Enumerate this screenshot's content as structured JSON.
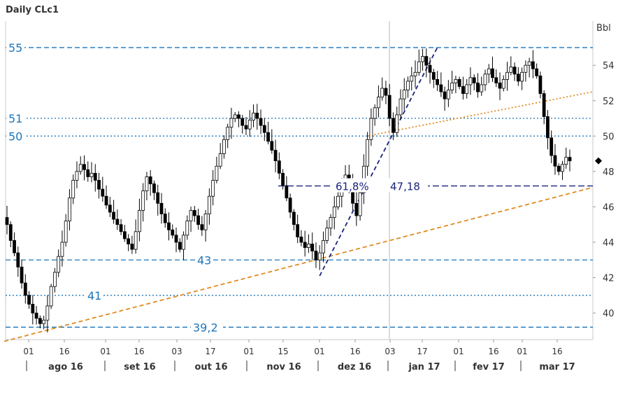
{
  "chart_data": {
    "type": "candlestick",
    "title": "Daily CLc1",
    "ylabel": "Bbl",
    "ylim": [
      38.5,
      56.5
    ],
    "y_ticks": [
      40,
      42,
      44,
      46,
      48,
      50,
      52,
      54
    ],
    "x_day_ticks": [
      "01",
      "16",
      "01",
      "16",
      "03",
      "17",
      "01",
      "15",
      "01",
      "16",
      "03",
      "17",
      "01",
      "16",
      "01",
      "16"
    ],
    "x_month_labels": [
      "ago 16",
      "set 16",
      "out 16",
      "nov 16",
      "dez 16",
      "jan 17",
      "fev 17",
      "mar 17"
    ],
    "horizontal_levels": [
      {
        "value": 55,
        "label": "55",
        "style": "dashed"
      },
      {
        "value": 51,
        "label": "51",
        "style": "dotted"
      },
      {
        "value": 50,
        "label": "50",
        "style": "dotted"
      },
      {
        "value": 43,
        "label": "43",
        "style": "dashed"
      },
      {
        "value": 41,
        "label": "41",
        "style": "dotted"
      },
      {
        "value": 39.2,
        "label": "39,2",
        "style": "dashed"
      }
    ],
    "fibonacci": {
      "ratio_label": "61,8%",
      "value_label": "47,18",
      "value": 47.18
    },
    "series": [
      {
        "values": [
          45,
          44.1,
          43.4,
          42.6,
          41.7,
          41.0,
          40.5,
          40.0,
          39.7,
          39.4,
          39.6,
          40.4,
          41.5,
          42.3,
          43.2,
          44.0,
          45.2,
          46.5,
          47.5,
          48.0,
          48.4,
          48.1,
          47.7,
          47.9,
          47.5,
          47.0,
          46.6,
          46.1,
          45.7,
          45.3,
          45.0,
          44.6,
          44.2,
          43.9,
          43.6,
          44.6,
          45.8,
          46.9,
          47.7,
          47.3,
          46.8,
          46.2,
          45.6,
          45.1,
          44.7,
          44.4,
          44.0,
          43.6,
          44.4,
          45.2,
          45.8,
          45.5,
          45.0,
          44.7,
          45.6,
          46.6,
          47.5,
          48.3,
          49.0,
          49.8,
          50.5,
          51.0,
          51.2,
          51.0,
          50.6,
          50.4,
          50.9,
          51.3,
          51.0,
          50.6,
          50.2,
          49.7,
          49.2,
          48.6,
          47.9,
          47.2,
          46.5,
          45.7,
          45.0,
          44.3,
          44.0,
          43.7,
          43.9,
          43.5,
          43.0,
          43.4,
          44.1,
          44.8,
          45.4,
          46.0,
          46.6,
          47.2,
          47.8,
          47.3,
          46.2,
          45.5,
          46.8,
          48.3,
          49.8,
          51.0,
          51.6,
          52.2,
          52.7,
          52.3,
          51.0,
          50.2,
          51.2,
          52.1,
          52.6,
          53.1,
          53.4,
          53.6,
          54.2,
          54.5,
          54.0,
          53.6,
          53.2,
          52.9,
          52.5,
          52.1,
          52.6,
          53.0,
          53.2,
          52.8,
          52.4,
          52.9,
          53.3,
          53.0,
          52.5,
          52.9,
          53.5,
          53.8,
          53.3,
          53.0,
          52.7,
          53.2,
          53.6,
          53.9,
          53.5,
          53.1,
          53.6,
          54.0,
          54.2,
          53.8,
          53.4,
          52.4,
          51.1,
          49.9,
          48.9,
          48.3,
          48.0,
          48.4,
          48.8,
          48.6
        ]
      }
    ],
    "trendlines": [
      {
        "color": "#e08a1e",
        "style": "dashed",
        "from": [
          0,
          38.4
        ],
        "to": [
          167,
          47.1
        ]
      },
      {
        "color": "#e08a1e",
        "style": "dotted",
        "from": [
          98,
          50
        ],
        "to": [
          167,
          52.5
        ]
      },
      {
        "color": "#1a237e",
        "style": "dashed",
        "from": [
          85,
          42.1
        ],
        "to": [
          117,
          55
        ]
      }
    ]
  },
  "colors": {
    "level": "#1b75bb",
    "trend": "#e08a1e",
    "fib": "#1a237e",
    "candle": "#000000",
    "grid": "#dcdcdc",
    "marker": "#000000"
  },
  "marker": {
    "value": 48.6,
    "icon": "diamond-icon"
  }
}
